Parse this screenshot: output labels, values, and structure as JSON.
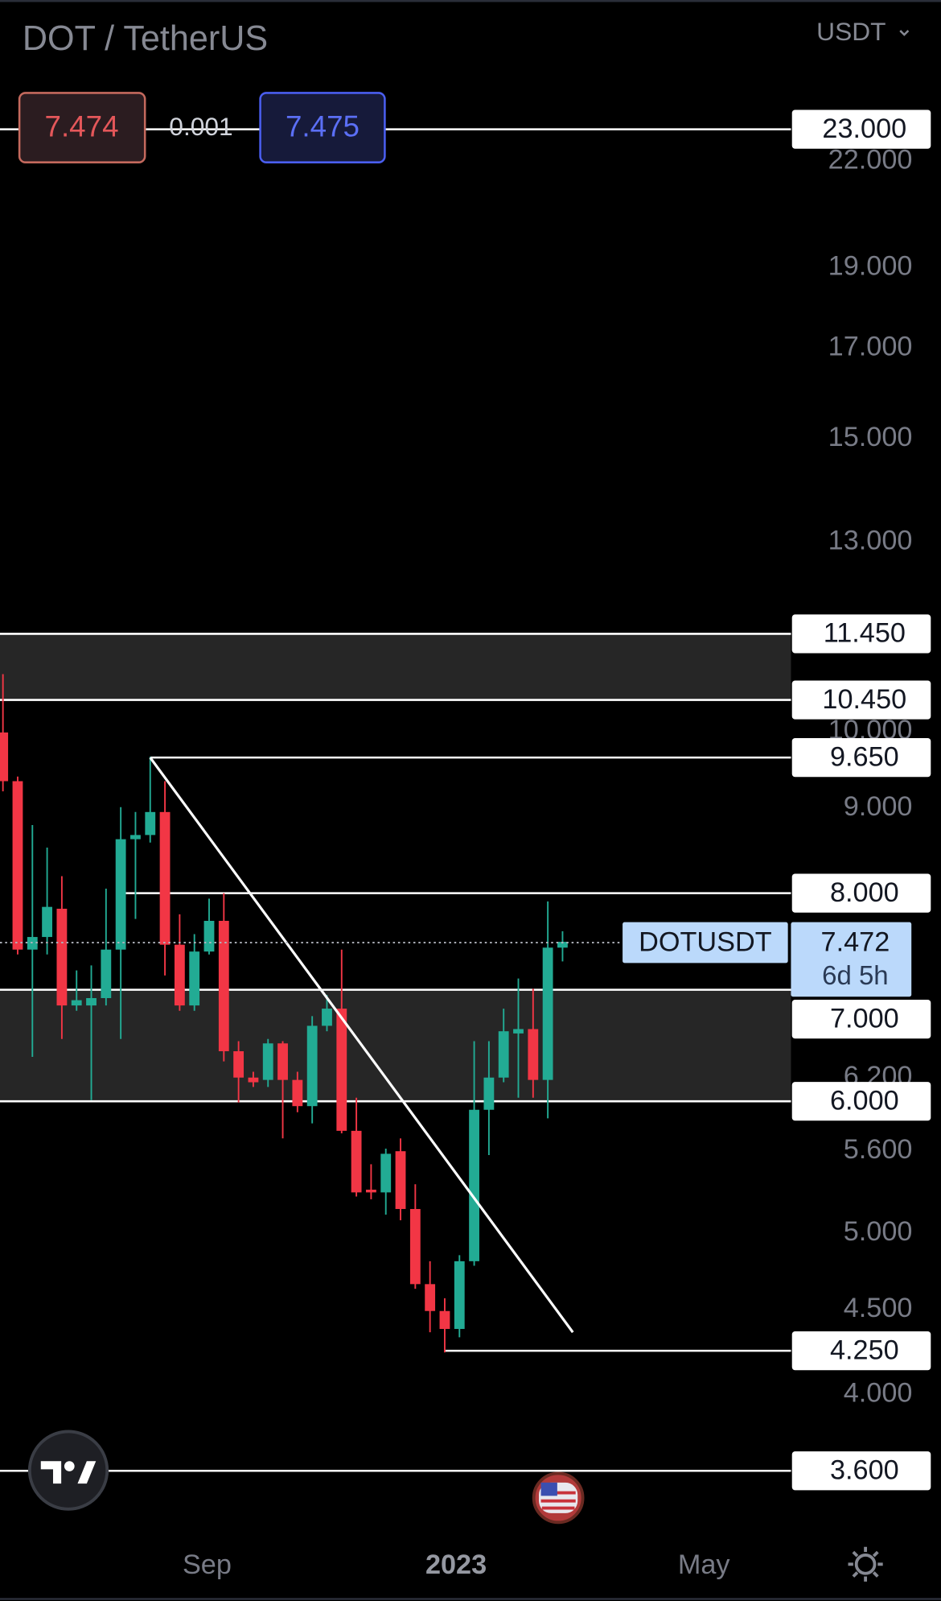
{
  "chart_data": {
    "type": "candlestick",
    "title": "DOT / TetherUS",
    "currency": "USDT",
    "order": {
      "sell": 7.474,
      "spread": 0.001,
      "buy": 7.475
    },
    "log": true,
    "ylim": [
      3.31,
      27.5
    ],
    "yticks": [
      {
        "value": 22,
        "label": "22.000"
      },
      {
        "value": 19,
        "label": "19.000"
      },
      {
        "value": 17,
        "label": "17.000"
      },
      {
        "value": 15,
        "label": "15.000"
      },
      {
        "value": 13,
        "label": "13.000"
      },
      {
        "value": 10,
        "label": "10.000"
      },
      {
        "value": 9,
        "label": "9.000"
      },
      {
        "value": 6.2,
        "label": "6.200"
      },
      {
        "value": 5.6,
        "label": "5.600"
      },
      {
        "value": 5,
        "label": "5.000"
      },
      {
        "value": 4.5,
        "label": "4.500"
      },
      {
        "value": 4,
        "label": "4.000"
      }
    ],
    "xlim": [
      -0.2,
      63.7
    ],
    "xticks": [
      {
        "value": 13.86,
        "label": "Sep"
      },
      {
        "value": 30.77,
        "label": "2023"
      },
      {
        "value": 47.6,
        "label": "May"
      }
    ],
    "up_color": "#22ab94",
    "down_color": "#f23645",
    "candles": [
      [
        9.99,
        10.83,
        9.21,
        9.34
      ],
      [
        9.34,
        9.4,
        7.35,
        7.4
      ],
      [
        7.4,
        8.79,
        6.38,
        7.53
      ],
      [
        7.53,
        8.52,
        7.35,
        7.85
      ],
      [
        7.83,
        8.19,
        6.54,
        6.85
      ],
      [
        6.85,
        7.19,
        6.8,
        6.9
      ],
      [
        6.85,
        7.24,
        6.01,
        6.92
      ],
      [
        6.92,
        8.05,
        6.85,
        7.4
      ],
      [
        7.4,
        9.01,
        6.54,
        8.62
      ],
      [
        8.62,
        8.95,
        7.72,
        8.67
      ],
      [
        8.67,
        9.66,
        8.58,
        8.95
      ],
      [
        8.95,
        9.34,
        7.14,
        7.45
      ],
      [
        7.45,
        7.77,
        6.8,
        6.85
      ],
      [
        6.85,
        7.56,
        6.8,
        7.38
      ],
      [
        7.38,
        7.94,
        7.35,
        7.7
      ],
      [
        7.7,
        8.0,
        6.34,
        6.43
      ],
      [
        6.43,
        6.52,
        5.99,
        6.2
      ],
      [
        6.2,
        6.25,
        6.12,
        6.16
      ],
      [
        6.18,
        6.54,
        6.12,
        6.5
      ],
      [
        6.5,
        6.52,
        5.7,
        6.18
      ],
      [
        6.18,
        6.25,
        5.91,
        5.96
      ],
      [
        5.96,
        6.75,
        5.82,
        6.66
      ],
      [
        6.66,
        6.95,
        6.61,
        6.82
      ],
      [
        6.82,
        7.4,
        5.74,
        5.76
      ],
      [
        5.76,
        6.03,
        5.26,
        5.29
      ],
      [
        5.31,
        5.5,
        5.24,
        5.29
      ],
      [
        5.29,
        5.62,
        5.13,
        5.58
      ],
      [
        5.6,
        5.7,
        5.09,
        5.17
      ],
      [
        5.17,
        5.35,
        4.63,
        4.66
      ],
      [
        4.66,
        4.81,
        4.36,
        4.49
      ],
      [
        4.49,
        4.57,
        4.24,
        4.38
      ],
      [
        4.38,
        4.85,
        4.33,
        4.81
      ],
      [
        4.81,
        6.52,
        4.78,
        5.93
      ],
      [
        5.93,
        6.52,
        5.57,
        6.2
      ],
      [
        6.2,
        6.82,
        6.16,
        6.61
      ],
      [
        6.59,
        7.11,
        6.03,
        6.63
      ],
      [
        6.63,
        7.01,
        6.03,
        6.18
      ],
      [
        6.18,
        7.91,
        5.86,
        7.42
      ],
      [
        7.42,
        7.59,
        7.28,
        7.48
      ]
    ],
    "zones": [
      [
        10.45,
        11.45
      ],
      [
        6,
        7
      ]
    ],
    "levels": [
      {
        "value": 23,
        "label": "23.000"
      },
      {
        "value": 11.45,
        "label": "11.450"
      },
      {
        "value": 10.45,
        "label": "10.450"
      },
      {
        "value": 9.65,
        "label": "9.650",
        "from": 10
      },
      {
        "value": 8,
        "label": "8.000",
        "from": 8
      },
      {
        "value": 7,
        "label": "7.000"
      },
      {
        "value": 6,
        "label": "6.000"
      },
      {
        "value": 4.25,
        "label": "4.250",
        "from": 30
      },
      {
        "value": 3.6,
        "label": "3.600"
      }
    ],
    "trendline": {
      "x": [
        10,
        38.7
      ],
      "y": [
        9.65,
        4.36
      ]
    },
    "last": {
      "symbol": "DOTUSDT",
      "value": 7.472,
      "countdown": "6d 5h"
    }
  }
}
